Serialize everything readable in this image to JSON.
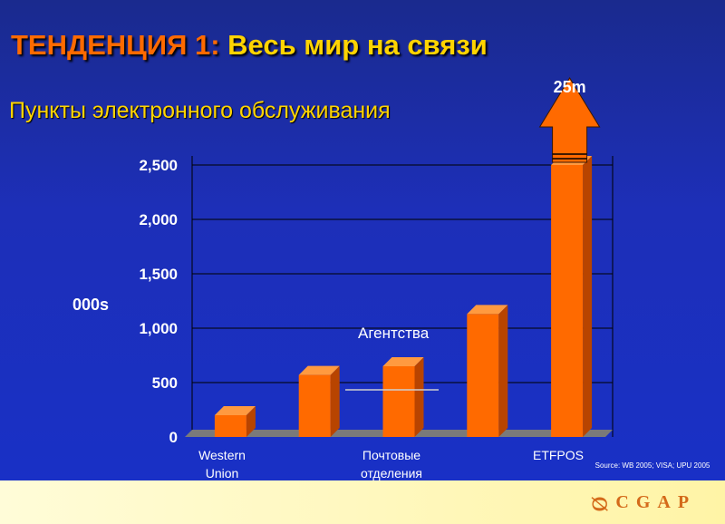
{
  "header": {
    "title_prefix": "ТЕНДЕНЦИЯ 1:",
    "title_main": " Весь мир на связи",
    "subtitle": "Пункты электронного обслуживания"
  },
  "chart_data": {
    "type": "bar",
    "ylabel": "000s",
    "ylim": [
      0,
      2500
    ],
    "yticks": [
      "0",
      "500",
      "1,000",
      "1,500",
      "2,000",
      "2,500"
    ],
    "ytick_values": [
      0,
      500,
      1000,
      1500,
      2000,
      2500
    ],
    "values": [
      200,
      570,
      650,
      1130,
      2500
    ],
    "category_labels": [
      [
        "Western",
        "Union"
      ],
      [
        "Почтовые",
        "отделения"
      ],
      [
        "ETFPOS"
      ]
    ],
    "annotations": {
      "agencies": "Агентства",
      "top_value": "25m"
    },
    "colors": {
      "front": "#ff6a00",
      "top": "#ff9a40",
      "side": "#b84400",
      "grid": "#000000",
      "floor": "#7a7a7a"
    }
  },
  "footer": {
    "source": "Source: WB 2005; VISA; UPU 2005",
    "logo_text": "CGAP"
  }
}
